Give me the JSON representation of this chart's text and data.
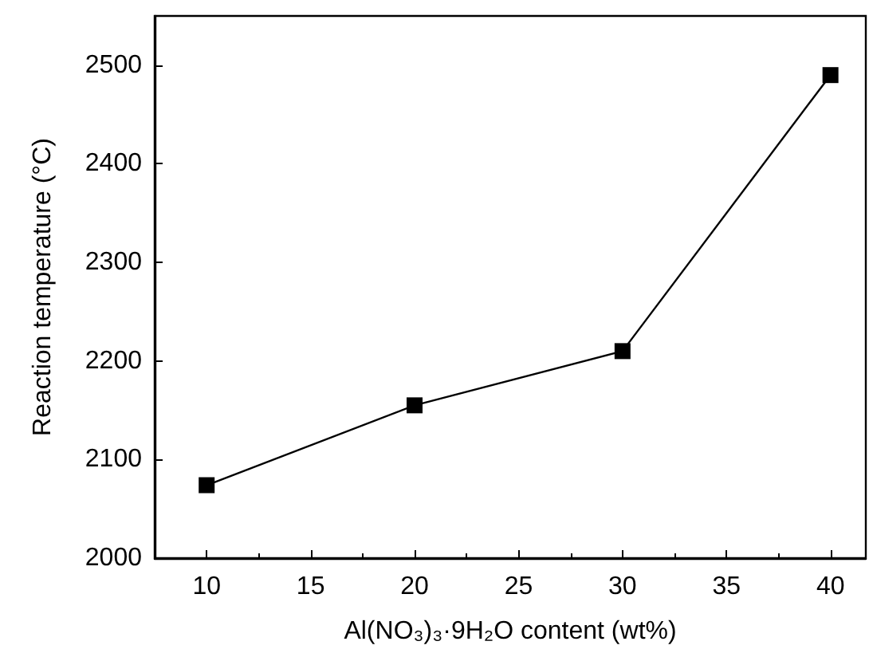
{
  "chart_data": {
    "type": "line",
    "xlabel": "Al(NO₃)₃·9H₂O content (wt%)",
    "ylabel": "Reaction temperature (°C)",
    "x": [
      10,
      20,
      30,
      40
    ],
    "series": [
      {
        "color": "#000000",
        "values": [
          2074,
          2155,
          2210,
          2490
        ]
      }
    ],
    "xlim": [
      7.5,
      41.7
    ],
    "xticks": [
      10,
      15,
      20,
      25,
      30,
      35,
      40
    ],
    "ylim": [
      2000,
      2550
    ],
    "yticks": [
      2000,
      2100,
      2200,
      2300,
      2400,
      2500
    ],
    "marker": "square",
    "line_style": "solid"
  }
}
